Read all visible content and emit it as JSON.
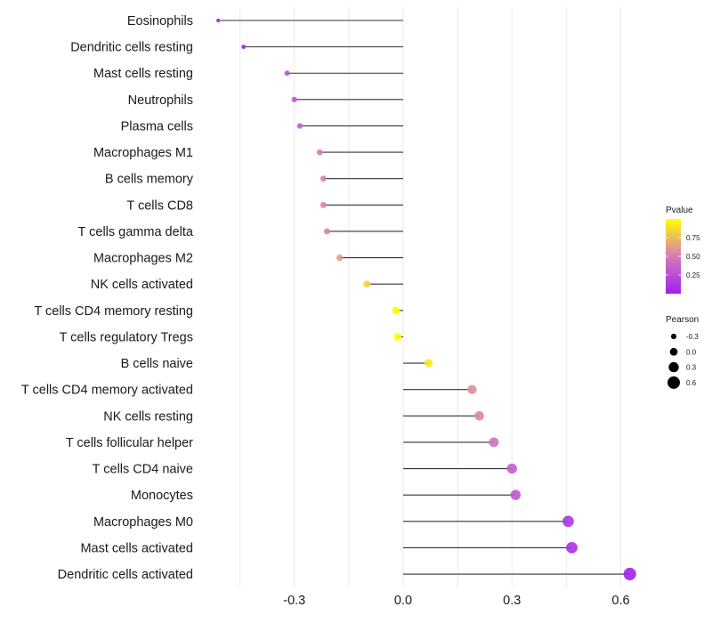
{
  "chart_data": {
    "type": "lollipop",
    "title": "",
    "xlabel": "",
    "ylabel": "",
    "xlim": [
      -0.55,
      0.68
    ],
    "xticks": [
      -0.3,
      0.0,
      0.3,
      0.6
    ],
    "xtick_labels": [
      "-0.3",
      "0.0",
      "0.3",
      "0.6"
    ],
    "grid": true,
    "legend_placement": "right",
    "categories": [
      "Eosinophils",
      "Dendritic cells resting",
      "Mast cells resting",
      "Neutrophils",
      "Plasma cells",
      "Macrophages M1",
      "B cells memory",
      "T cells CD8",
      "T cells gamma delta",
      "Macrophages M2",
      "NK cells activated",
      "T cells CD4 memory resting",
      "T cells regulatory  Tregs",
      "B cells naive",
      "T cells CD4 memory activated",
      "NK cells resting",
      "T cells follicular helper",
      "T cells CD4 naive",
      "Monocytes",
      "Macrophages M0",
      "Mast cells activated",
      "Dendritic cells activated"
    ],
    "pearson": [
      -0.51,
      -0.44,
      -0.32,
      -0.3,
      -0.285,
      -0.23,
      -0.22,
      -0.22,
      -0.21,
      -0.175,
      -0.1,
      -0.02,
      -0.015,
      0.07,
      0.19,
      0.21,
      0.25,
      0.3,
      0.31,
      0.455,
      0.465,
      0.625
    ],
    "pvalue": [
      0.02,
      0.03,
      0.28,
      0.3,
      0.33,
      0.5,
      0.52,
      0.52,
      0.53,
      0.62,
      0.85,
      0.99,
      0.99,
      0.9,
      0.58,
      0.55,
      0.45,
      0.33,
      0.3,
      0.12,
      0.1,
      0.02
    ],
    "color_legend": {
      "title": "Pvalue",
      "ticks": [
        0.25,
        0.5,
        0.75
      ],
      "tick_labels": [
        "0.25",
        "0.50",
        "0.75"
      ],
      "range": [
        0.0,
        1.0
      ],
      "low_color": "#a020f0",
      "high_color": "#ffff00"
    },
    "size_legend": {
      "title": "Pearson",
      "values": [
        -0.3,
        0.0,
        0.3,
        0.6
      ],
      "labels": [
        "-0.3",
        "0.0",
        "0.3",
        "0.6"
      ]
    }
  }
}
